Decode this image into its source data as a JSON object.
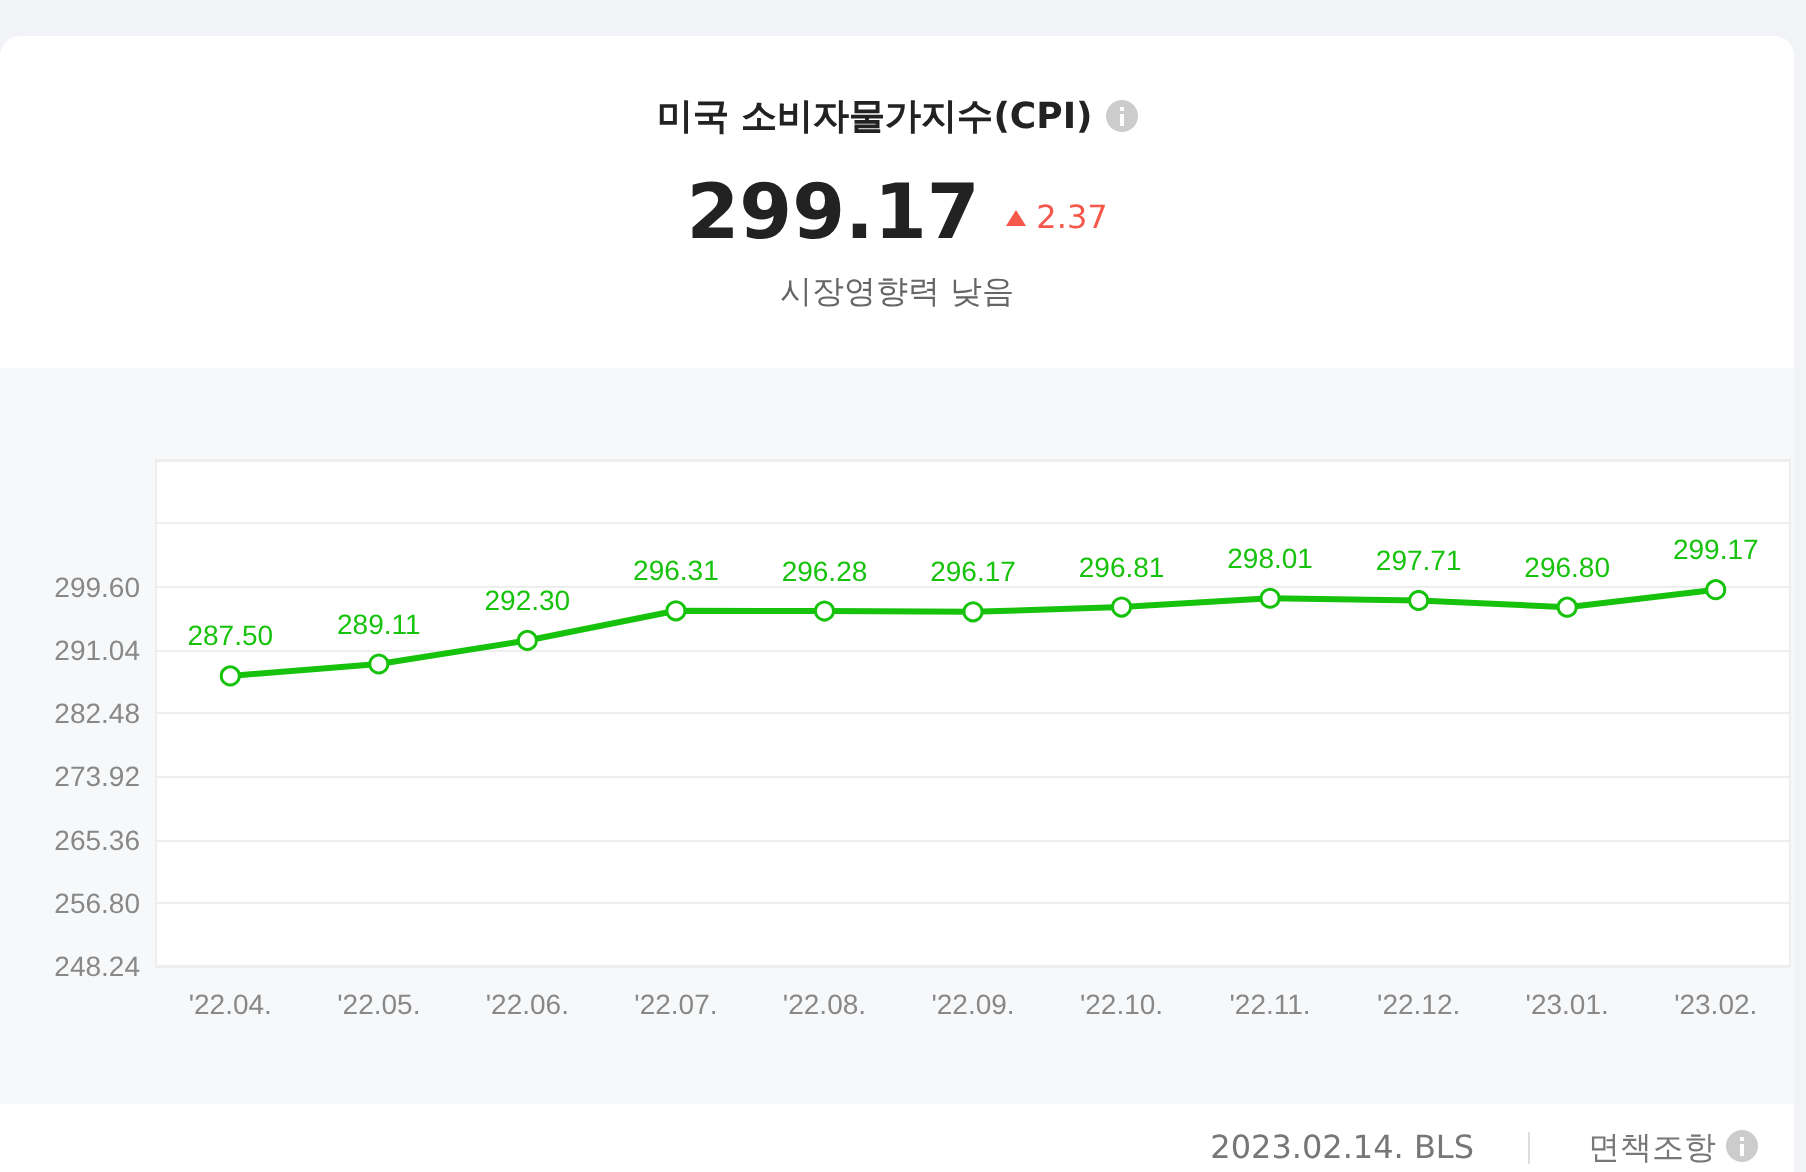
{
  "chart_data": {
    "type": "line",
    "title": "미국 소비자물가지수(CPI)",
    "categories": [
      "'22.04.",
      "'22.05.",
      "'22.06.",
      "'22.07.",
      "'22.08.",
      "'22.09.",
      "'22.10.",
      "'22.11.",
      "'22.12.",
      "'23.01.",
      "'23.02."
    ],
    "values": [
      287.5,
      289.11,
      292.3,
      296.31,
      296.28,
      296.17,
      296.81,
      298.01,
      297.71,
      296.8,
      299.17
    ],
    "value_labels": [
      "287.50",
      "289.11",
      "292.30",
      "296.31",
      "296.28",
      "296.17",
      "296.81",
      "298.01",
      "297.71",
      "296.80",
      "299.17"
    ],
    "color": "#16c20c",
    "ylim": [
      248.24,
      316.72
    ],
    "yticks": [
      {
        "value": 248.24,
        "label": "248.24"
      },
      {
        "value": 256.8,
        "label": "256.80"
      },
      {
        "value": 265.36,
        "label": "265.36"
      },
      {
        "value": 273.92,
        "label": "273.92"
      },
      {
        "value": 282.48,
        "label": "282.48"
      },
      {
        "value": 291.04,
        "label": "291.04"
      },
      {
        "value": 299.6,
        "label": "299.60"
      },
      {
        "value": 308.16,
        "label": null
      },
      {
        "value": 316.72,
        "label": null
      }
    ],
    "grid": "y",
    "marker": "circle",
    "annotations": [
      "299.17",
      "2.37",
      "시장영향력 낮음",
      "2023.02.14. BLS",
      "면책조항"
    ]
  }
}
